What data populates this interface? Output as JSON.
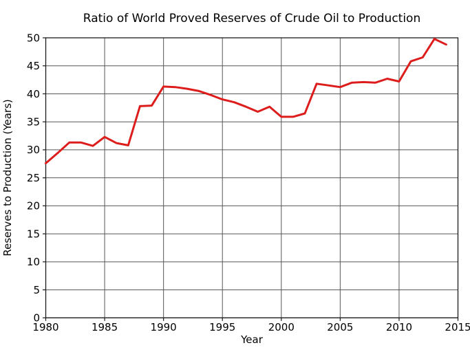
{
  "chart_data": {
    "type": "line",
    "title": "Ratio of World Proved Reserves of Crude Oil to Production",
    "xlabel": "Year",
    "ylabel": "Reserves to Production (Years)",
    "xlim": [
      1980,
      2015
    ],
    "ylim": [
      0,
      50
    ],
    "xticks": [
      1980,
      1985,
      1990,
      1995,
      2000,
      2005,
      2010,
      2015
    ],
    "yticks": [
      0,
      5,
      10,
      15,
      20,
      25,
      30,
      35,
      40,
      45,
      50
    ],
    "grid": true,
    "legend_position": "none",
    "line_color": "#dd1c1c",
    "x": [
      1980,
      1981,
      1982,
      1983,
      1984,
      1985,
      1986,
      1987,
      1988,
      1989,
      1990,
      1991,
      1992,
      1993,
      1994,
      1995,
      1996,
      1997,
      1998,
      1999,
      2000,
      2001,
      2002,
      2003,
      2004,
      2005,
      2006,
      2007,
      2008,
      2009,
      2010,
      2011,
      2012,
      2013,
      2014
    ],
    "values": [
      27.6,
      29.4,
      31.3,
      31.3,
      30.7,
      32.3,
      31.2,
      30.8,
      37.8,
      37.9,
      41.3,
      41.2,
      40.9,
      40.5,
      39.8,
      39.0,
      38.5,
      37.7,
      36.8,
      37.7,
      35.9,
      35.9,
      36.5,
      41.8,
      41.5,
      41.2,
      42.0,
      42.1,
      42.0,
      42.7,
      42.2,
      45.8,
      46.5,
      49.8,
      48.8
    ]
  }
}
